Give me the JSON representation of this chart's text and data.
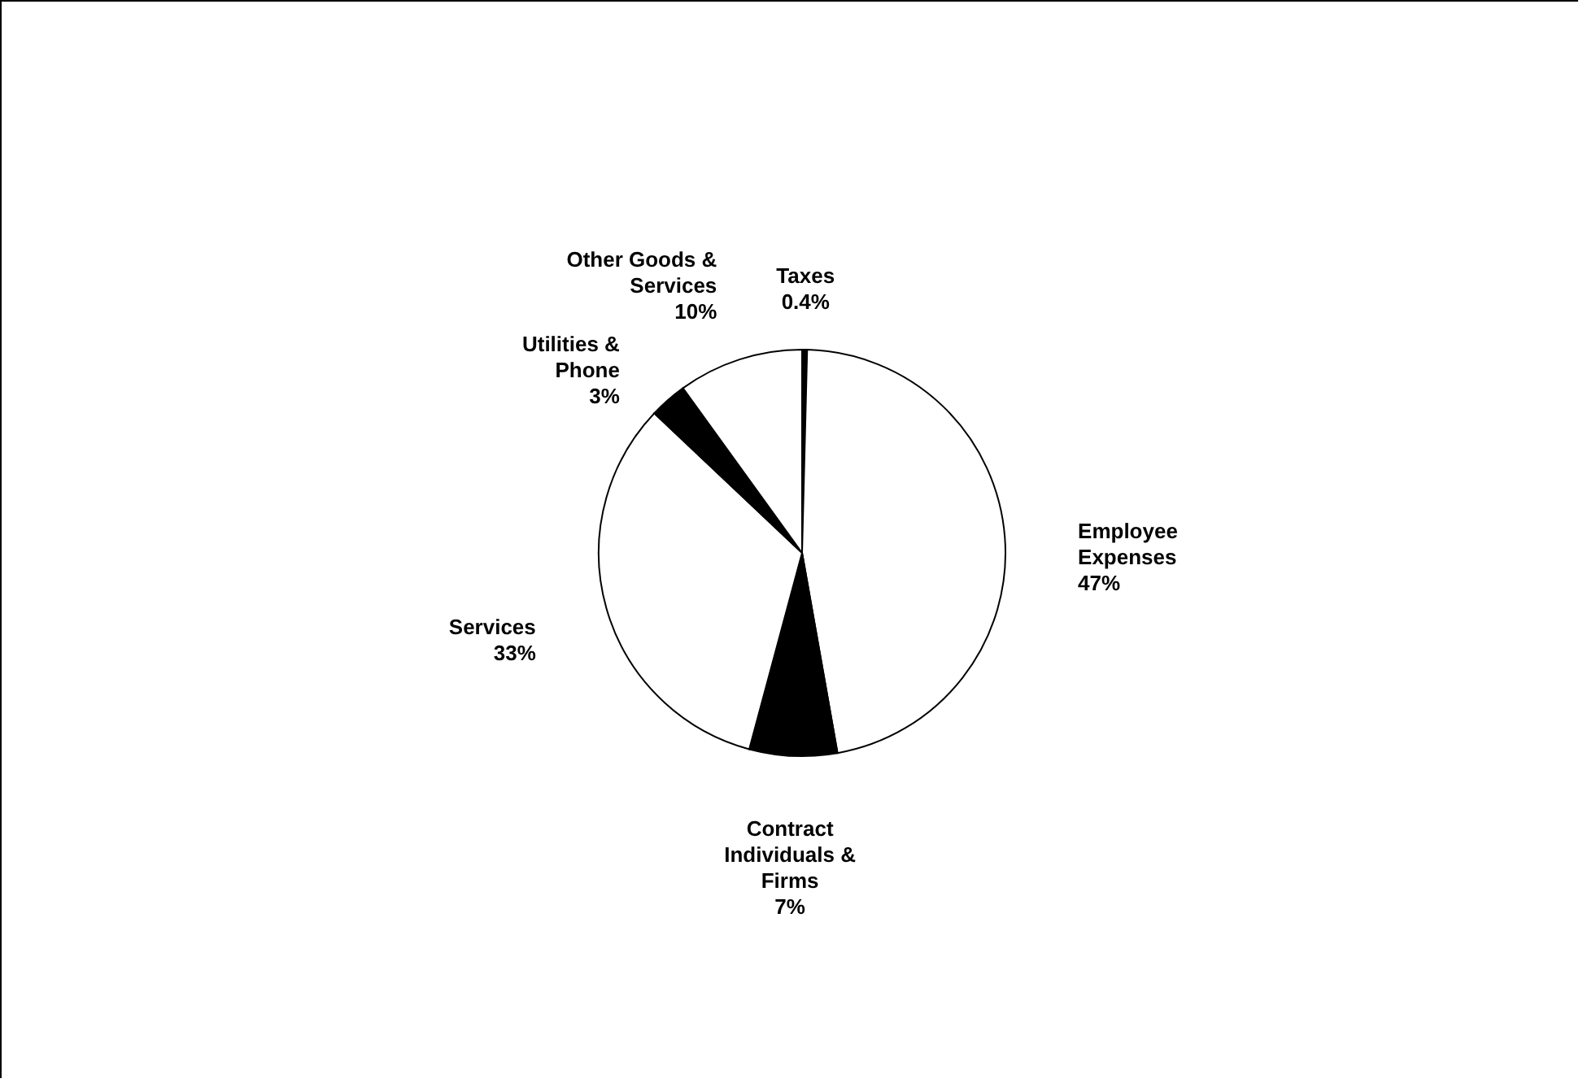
{
  "chart_data": {
    "type": "pie",
    "categories": [
      "Taxes",
      "Employee Expenses",
      "Contract Individuals & Firms",
      "Services",
      "Utilities & Phone",
      "Other Goods & Services"
    ],
    "values": [
      0.4,
      47,
      7,
      33,
      3,
      10
    ],
    "colors": [
      "#000000",
      "#ffffff",
      "#000000",
      "#ffffff",
      "#000000",
      "#ffffff"
    ],
    "value_labels": [
      "0.4%",
      "47%",
      "7%",
      "33%",
      "3%",
      "10%"
    ]
  }
}
